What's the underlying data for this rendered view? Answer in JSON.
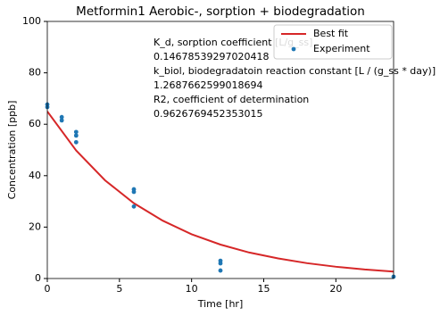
{
  "chart_data": {
    "type": "line",
    "title": "Metformin1 Aerobic-, sorption + biodegradation",
    "x_label": "Time [hr]",
    "y_label": "Concentration [ppb]",
    "xlim": [
      0,
      24
    ],
    "ylim": [
      0,
      100
    ],
    "xticks": [
      0,
      5,
      10,
      15,
      20
    ],
    "yticks": [
      0,
      20,
      40,
      60,
      80,
      100
    ],
    "legend": "upper right",
    "annotations": [
      "K_d, sorption coefficient [L/g_ss]",
      "0.14678539297020418",
      "k_biol, biodegradatoin reaction constant [L / (g_ss * day)]",
      "1.2687662599018694",
      "R2, coefficient of determination",
      "0.9626769452353015"
    ],
    "series": [
      {
        "name": "Best fit",
        "color": "#d62728",
        "mode": "line",
        "x": [
          0,
          2,
          4,
          6,
          8,
          10,
          12,
          14,
          16,
          18,
          20,
          22,
          24
        ],
        "values": [
          65,
          49.8,
          38.2,
          29.3,
          22.5,
          17.2,
          13.2,
          10.1,
          7.8,
          5.97,
          4.58,
          3.5,
          2.69
        ]
      },
      {
        "name": "Experiment",
        "color": "#1f77b4",
        "mode": "markers",
        "x": [
          0,
          0,
          1,
          1,
          2,
          2,
          2,
          6,
          6,
          6,
          12,
          12,
          12,
          24
        ],
        "values": [
          67.7,
          66.7,
          62.8,
          61.5,
          57,
          55.6,
          53,
          34.7,
          33.7,
          28,
          6.9,
          5.9,
          3.1,
          0.7
        ]
      }
    ]
  }
}
